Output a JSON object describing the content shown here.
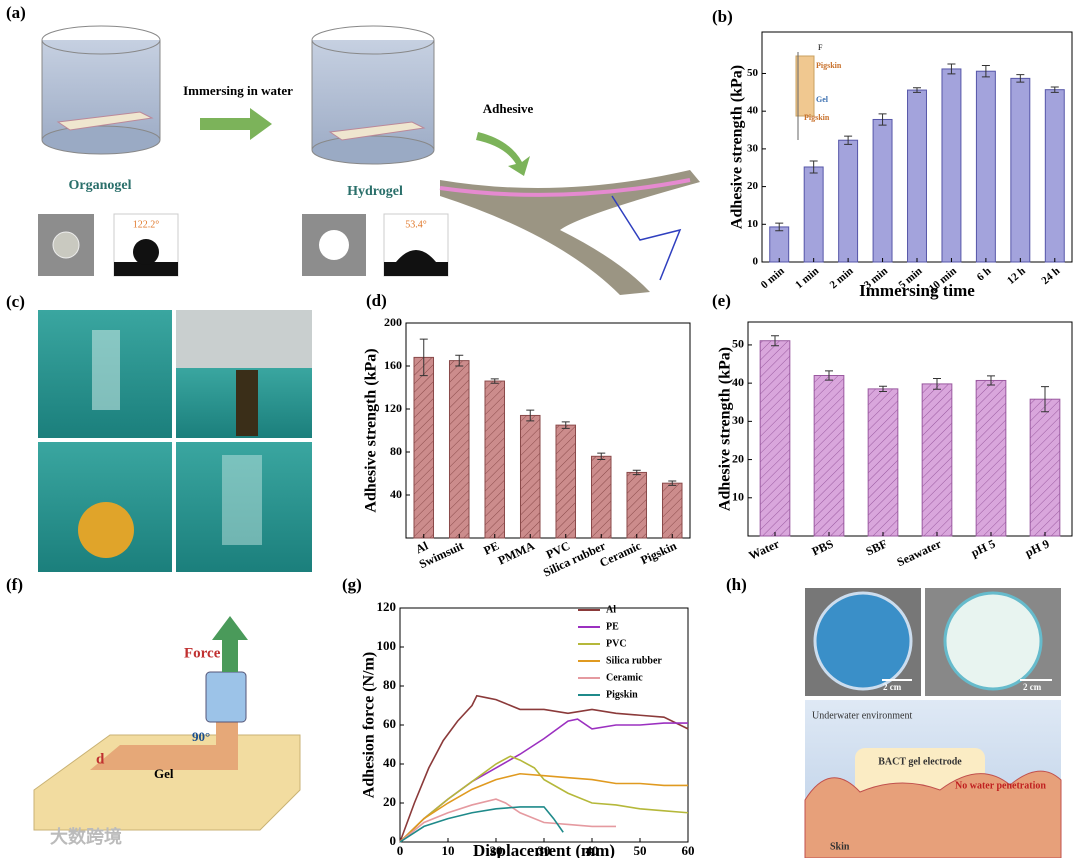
{
  "panel_labels": [
    "(a)",
    "(b)",
    "(c)",
    "(d)",
    "(e)",
    "(f)",
    "(g)",
    "(h)"
  ],
  "illustrations": {
    "a": {
      "process": "Immersing in water",
      "organogel": "Organogel",
      "hydrogel": "Hydrogel",
      "adhesive": "Adhesive",
      "angle_organogel": "122.2°",
      "angle_hydrogel": "53.4°"
    },
    "f": {
      "force": "Force",
      "distance": "d",
      "gel": "Gel",
      "angle": "90°"
    },
    "h": {
      "scale_left": "2 cm",
      "scale_right": "2 cm",
      "environment": "Underwater environment",
      "electrode": "BACT gel electrode",
      "note": "No water penetration",
      "skin": "Skin"
    }
  },
  "watermark": "大数跨境",
  "chart_data": [
    {
      "type": "bar",
      "xlabel": "Immersing time",
      "ylabel": "Adhesive strength (kPa)",
      "categories": [
        "0 min",
        "1 min",
        "2 min",
        "3 min",
        "5 min",
        "10 min",
        "6 h",
        "12 h",
        "24 h"
      ],
      "values": [
        9.3,
        25.2,
        32.3,
        37.8,
        45.6,
        51.2,
        50.6,
        48.7,
        45.7
      ],
      "errors": [
        1.0,
        1.6,
        1.1,
        1.5,
        0.6,
        1.3,
        1.5,
        1.0,
        0.7
      ],
      "color": "#a3a3dc",
      "edge": "#5656a8",
      "hatch": false,
      "ylim": [
        0,
        61
      ],
      "yticks": [
        0,
        10,
        20,
        30,
        40,
        50
      ],
      "inset_labels": [
        "F",
        "Pigskin",
        "Gel",
        "Pigskin"
      ]
    },
    {
      "type": "bar",
      "ylabel": "Adhesive strength (kPa)",
      "categories": [
        "Al",
        "Swimsuit",
        "PE",
        "PMMA",
        "PVC",
        "Silica rubber",
        "Ceramic",
        "Pigskin"
      ],
      "values": [
        168,
        165,
        146,
        114,
        105,
        76,
        61,
        51
      ],
      "errors": [
        17,
        5,
        2,
        5,
        3,
        3,
        2,
        2
      ],
      "color": "#cc8c8c",
      "edge": "#8a4a4a",
      "hatch": true,
      "ylim": [
        0,
        200
      ],
      "yticks": [
        40,
        80,
        120,
        160,
        200
      ]
    },
    {
      "type": "bar",
      "ylabel": "Adhesive strength (kPa)",
      "categories": [
        "Water",
        "PBS",
        "SBF",
        "Seawater",
        "pH 5",
        "pH 9"
      ],
      "values": [
        51.1,
        42.0,
        38.5,
        39.8,
        40.7,
        35.8
      ],
      "errors": [
        1.3,
        1.2,
        0.7,
        1.4,
        1.2,
        3.3
      ],
      "color": "#d9a6dc",
      "edge": "#9a5aa0",
      "hatch": true,
      "ylim": [
        0,
        56
      ],
      "yticks": [
        10,
        20,
        30,
        40,
        50
      ]
    },
    {
      "type": "line",
      "xlabel": "Displacement (mm)",
      "ylabel": "Adhesion force (N/m)",
      "xlim": [
        0,
        60
      ],
      "xticks": [
        0,
        10,
        20,
        30,
        40,
        50,
        60
      ],
      "ylim": [
        0,
        120
      ],
      "yticks": [
        0,
        20,
        40,
        60,
        80,
        100,
        120
      ],
      "legend": "upper right",
      "series": [
        {
          "name": "Al",
          "color": "#8b3a3a",
          "x": [
            0,
            3,
            6,
            9,
            12,
            15,
            16,
            18,
            20,
            22,
            25,
            30,
            35,
            40,
            45,
            50,
            55,
            60
          ],
          "values": [
            0,
            20,
            38,
            52,
            62,
            70,
            75,
            74,
            73,
            71,
            68,
            68,
            66,
            68,
            66,
            65,
            64,
            58
          ]
        },
        {
          "name": "PE",
          "color": "#9b30c0",
          "x": [
            0,
            5,
            10,
            15,
            20,
            25,
            30,
            35,
            37,
            40,
            45,
            50,
            55,
            60
          ],
          "values": [
            0,
            12,
            22,
            31,
            38,
            45,
            53,
            62,
            63,
            58,
            60,
            60,
            61,
            61
          ]
        },
        {
          "name": "PVC",
          "color": "#b5b83a",
          "x": [
            0,
            5,
            10,
            15,
            20,
            23,
            25,
            28,
            30,
            35,
            40,
            45,
            50,
            55,
            60
          ],
          "values": [
            0,
            12,
            22,
            31,
            40,
            44,
            42,
            38,
            32,
            25,
            20,
            19,
            17,
            16,
            15
          ]
        },
        {
          "name": "Silica rubber",
          "color": "#e09a20",
          "x": [
            0,
            5,
            10,
            15,
            20,
            25,
            30,
            35,
            40,
            45,
            50,
            55,
            60
          ],
          "values": [
            0,
            12,
            20,
            27,
            32,
            35,
            34,
            33,
            32,
            30,
            30,
            29,
            29
          ]
        },
        {
          "name": "Ceramic",
          "color": "#e59aa0",
          "x": [
            0,
            5,
            10,
            15,
            20,
            22,
            25,
            30,
            35,
            40,
            45
          ],
          "values": [
            0,
            10,
            15,
            19,
            22,
            20,
            15,
            10,
            9,
            8,
            8
          ]
        },
        {
          "name": "Pigskin",
          "color": "#1f8a8a",
          "x": [
            0,
            5,
            10,
            15,
            20,
            25,
            30,
            32,
            34
          ],
          "values": [
            0,
            8,
            12,
            15,
            17,
            18,
            18,
            12,
            5
          ]
        }
      ]
    }
  ]
}
